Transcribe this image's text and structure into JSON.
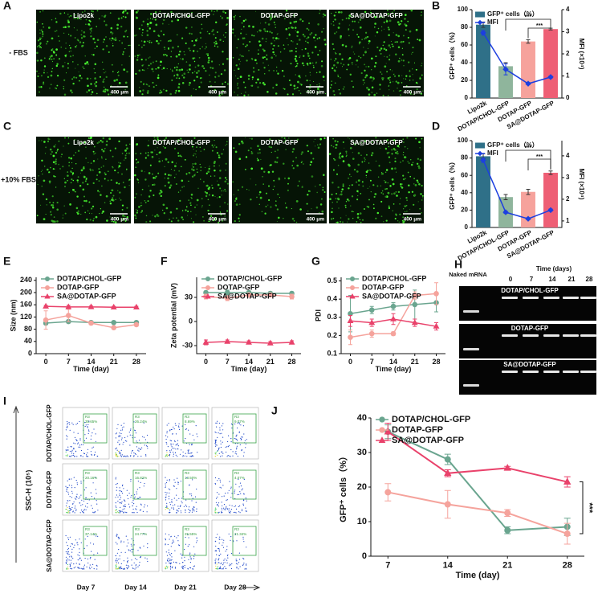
{
  "chart_data": [
    {
      "panel": "B",
      "type": "bar_line",
      "categories": [
        "Lipo2k",
        "DOTAP/CHOL-GFP",
        "DOTAP-GFP",
        "SA@DOTAP-GFP"
      ],
      "series": [
        {
          "name": "GFP⁺ cells（%）",
          "colors": [
            "#2f7088",
            "#8fb59c",
            "#f6a29c",
            "#ee5f75"
          ],
          "values": [
            83,
            36,
            64,
            78
          ],
          "errors": [
            3,
            4,
            2,
            1
          ]
        },
        {
          "name": "MFI",
          "color": "#1d3fe0",
          "axis": "y2",
          "marker": "diamond",
          "values": [
            2.95,
            1.3,
            0.65,
            0.95
          ],
          "errors": [
            0.1,
            0.25,
            0.05,
            0.05
          ]
        }
      ],
      "y_label": "GFP⁺ cells（%）",
      "y2_label": "MFI (×10⁴)",
      "ylim": [
        0,
        100
      ],
      "yticks": [
        0,
        20,
        40,
        60,
        80,
        100
      ],
      "y2lim": [
        0,
        4
      ],
      "y2ticks": [
        0,
        1,
        2,
        3,
        4
      ],
      "annotations": [
        "***",
        "***"
      ],
      "legend": "upper left"
    },
    {
      "panel": "D",
      "type": "bar_line",
      "categories": [
        "Lipo2k",
        "DOTAP/CHOL-GFP",
        "DOTAP-GFP",
        "SA@DOTAP-GFP"
      ],
      "series": [
        {
          "name": "GFP⁺ cells（%）",
          "colors": [
            "#2f7088",
            "#8fb59c",
            "#f6a29c",
            "#ee5f75"
          ],
          "values": [
            82,
            35,
            41,
            63
          ],
          "errors": [
            3,
            3,
            3,
            2
          ]
        },
        {
          "name": "MFI",
          "color": "#1d3fe0",
          "axis": "y2",
          "marker": "diamond",
          "values": [
            3.8,
            1.4,
            1.1,
            1.5
          ],
          "errors": [
            0.1,
            0.05,
            0.05,
            0.05
          ]
        }
      ],
      "y_label": "GFP⁺ cells（%）",
      "y2_label": "MFI (×10⁴)",
      "ylim": [
        0,
        100
      ],
      "yticks": [
        0,
        20,
        40,
        60,
        80,
        100
      ],
      "y2lim": [
        0.7,
        4.7
      ],
      "y2ticks": [
        1,
        2,
        3,
        4
      ],
      "annotations": [
        "***",
        "***"
      ],
      "legend": "upper left"
    },
    {
      "panel": "E",
      "type": "line",
      "x": [
        0,
        7,
        14,
        21,
        28
      ],
      "xlim": [
        -3,
        31
      ],
      "xticks": [
        0,
        7,
        14,
        21,
        28
      ],
      "ylim": [
        0,
        250
      ],
      "yticks": [
        0,
        40,
        80,
        120,
        160,
        200,
        240
      ],
      "x_label": "Time (day)",
      "y_label": "Size (nm)",
      "legend": "upper left",
      "series": [
        {
          "name": "DOTAP/CHOL-GFP",
          "color": "#6aa58f",
          "marker": "circle",
          "values": [
            100,
            105,
            102,
            102,
            102
          ],
          "errors": [
            5,
            5,
            3,
            3,
            3
          ]
        },
        {
          "name": "DOTAP-GFP",
          "color": "#f5a39c",
          "marker": "circle",
          "values": [
            110,
            125,
            100,
            85,
            95
          ],
          "errors": [
            30,
            20,
            5,
            5,
            5
          ]
        },
        {
          "name": "SA@DOTAP-GFP",
          "color": "#e9426b",
          "marker": "triangle",
          "values": [
            155,
            153,
            153,
            152,
            152
          ],
          "errors": [
            3,
            5,
            3,
            3,
            3
          ]
        }
      ]
    },
    {
      "panel": "F",
      "type": "line",
      "x": [
        0,
        7,
        14,
        21,
        28
      ],
      "xlim": [
        -3,
        31
      ],
      "xticks": [
        0,
        7,
        14,
        21,
        28
      ],
      "ylim": [
        -40,
        55
      ],
      "yticks": [
        -30,
        0,
        30
      ],
      "x_label": "Time (day)",
      "y_label": "Zeta potential (mV)",
      "legend": "upper left",
      "series": [
        {
          "name": "DOTAP/CHOL-GFP",
          "color": "#6aa58f",
          "marker": "circle",
          "values": [
            36,
            36,
            36,
            35,
            35
          ],
          "errors": [
            2,
            3,
            2,
            2,
            2
          ]
        },
        {
          "name": "DOTAP-GFP",
          "color": "#f5a39c",
          "marker": "circle",
          "values": [
            31,
            29,
            33,
            33,
            31
          ],
          "errors": [
            3,
            3,
            2,
            2,
            3
          ]
        },
        {
          "name": "SA@DOTAP-GFP",
          "color": "#e9426b",
          "marker": "triangle",
          "values": [
            -26,
            -25,
            -26,
            -27,
            -26
          ],
          "errors": [
            3,
            2,
            2,
            2,
            2
          ]
        }
      ]
    },
    {
      "panel": "G",
      "type": "line",
      "x": [
        0,
        7,
        14,
        21,
        28
      ],
      "xlim": [
        -3,
        31
      ],
      "xticks": [
        0,
        7,
        14,
        21,
        28
      ],
      "ylim": [
        0.1,
        0.52
      ],
      "yticks": [
        0.1,
        0.2,
        0.3,
        0.4,
        0.5
      ],
      "x_label": "Time (day)",
      "y_label": "PDI",
      "legend": "upper left",
      "series": [
        {
          "name": "DOTAP/CHOL-GFP",
          "color": "#6aa58f",
          "marker": "circle",
          "values": [
            0.32,
            0.34,
            0.36,
            0.37,
            0.38
          ],
          "errors": [
            0.1,
            0.02,
            0.02,
            0.08,
            0.05
          ]
        },
        {
          "name": "DOTAP-GFP",
          "color": "#f5a39c",
          "marker": "circle",
          "values": [
            0.19,
            0.21,
            0.21,
            0.42,
            0.43
          ],
          "errors": [
            0.04,
            0.02,
            0.01,
            0.02,
            0.06
          ]
        },
        {
          "name": "SA@DOTAP-GFP",
          "color": "#e9426b",
          "marker": "triangle",
          "values": [
            0.28,
            0.27,
            0.29,
            0.27,
            0.25
          ],
          "errors": [
            0.03,
            0.02,
            0.03,
            0.02,
            0.02
          ]
        }
      ]
    },
    {
      "panel": "J",
      "type": "line",
      "x": [
        7,
        14,
        21,
        28
      ],
      "xlim": [
        5,
        30
      ],
      "xticks": [
        7,
        14,
        21,
        28
      ],
      "ylim": [
        0,
        40
      ],
      "yticks": [
        0,
        10,
        20,
        30,
        40
      ],
      "x_label": "Time (day)",
      "y_label": "GFP⁺ cells（%）",
      "legend": "upper left",
      "annotations": [
        "***"
      ],
      "series": [
        {
          "name": "DOTAP/CHOL-GFP",
          "color": "#6aa58f",
          "marker": "circle",
          "values": [
            36,
            28,
            7.5,
            8.5
          ],
          "errors": [
            2,
            1.5,
            1,
            2.5
          ]
        },
        {
          "name": "DOTAP-GFP",
          "color": "#f5a39c",
          "marker": "circle",
          "values": [
            18.5,
            15,
            12.5,
            6.5
          ],
          "errors": [
            2.5,
            4,
            1,
            3
          ]
        },
        {
          "name": "SA@DOTAP-GFP",
          "color": "#e9426b",
          "marker": "triangle",
          "values": [
            36,
            24,
            25.5,
            21.5
          ],
          "errors": [
            2.5,
            1,
            0.5,
            1.5
          ]
        }
      ]
    }
  ],
  "images": [
    {
      "panel": "A",
      "row_label": "- FBS",
      "labels": [
        "Lipo2k",
        "DOTAP/CHOL-GFP",
        "DOTAP-GFP",
        "SA@DOTAP-GFP"
      ],
      "scale_bars": [
        "400 μm",
        "400 μm",
        "400 μm",
        "400 μm"
      ]
    },
    {
      "panel": "C",
      "row_label": "+10% FBS",
      "labels": [
        "Lipo2k",
        "DOTAP/CHOL-GFP",
        "DOTAP-GFP",
        "SA@DOTAP-GFP"
      ],
      "scale_bars": [
        "400 μm",
        "400 μm",
        "400 μm",
        "400 μm"
      ]
    }
  ],
  "gel": {
    "panel": "H",
    "lane_label": "Naked mRNA",
    "time_label": "Time (days)",
    "times": [
      0,
      7,
      14,
      21,
      28
    ],
    "strips": [
      "DOTAP/CHOL-GFP",
      "DOTAP-GFP",
      "SA@DOTAP-GFP"
    ]
  },
  "flow": {
    "panel": "I",
    "y_label": "SSC-H (10⁵)",
    "rows": [
      "DOTAP/CHOL-GFP",
      "DOTAP-GFP",
      "SA@DOTAP-GFP"
    ],
    "columns": [
      "Day 7",
      "Day 14",
      "Day 21",
      "Day 28"
    ],
    "gate": "R3",
    "percents": [
      [
        "35.65%",
        "26.24%",
        "8.69%",
        "9.07%"
      ],
      [
        "20.16%",
        "16.82%",
        "13.50%",
        "4.07%"
      ],
      [
        "37.14%",
        "24.77%",
        "25.55%",
        "21.34%"
      ]
    ]
  }
}
